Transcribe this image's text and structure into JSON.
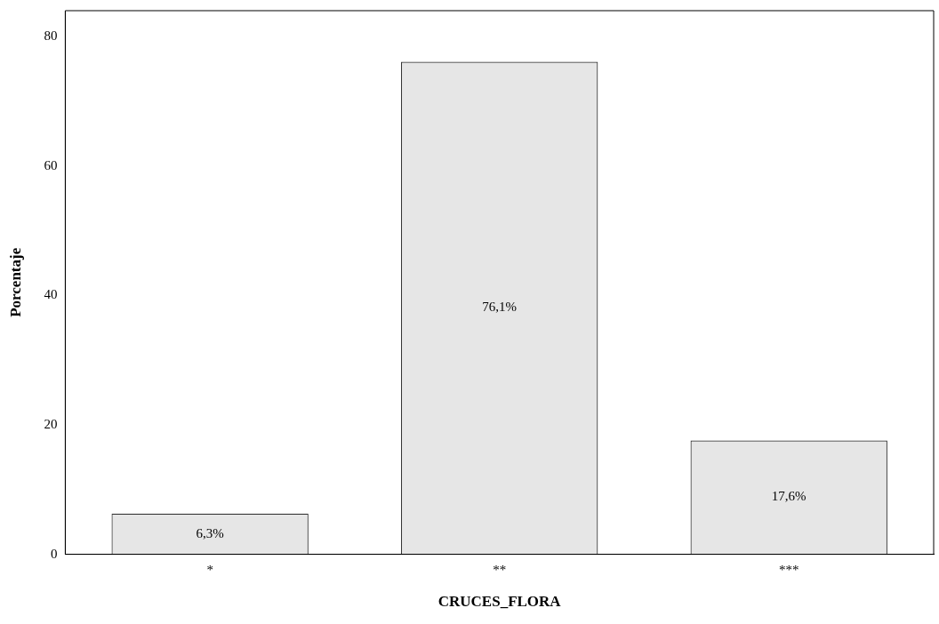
{
  "chart_data": {
    "type": "bar",
    "xlabel": "CRUCES_FLORA",
    "ylabel": "Porcentaje",
    "categories": [
      "*",
      "**",
      "***"
    ],
    "values": [
      6.3,
      76.1,
      17.6
    ],
    "value_labels": [
      "6,3%",
      "76,1%",
      "17,6%"
    ],
    "color": "#e6e6e6",
    "ylim": [
      0,
      84
    ],
    "yticks": [
      0,
      20,
      40,
      60,
      80
    ],
    "grid": false,
    "legend": false
  }
}
